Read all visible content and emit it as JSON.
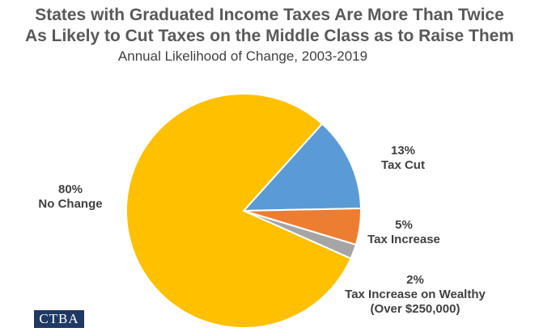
{
  "chart_data": {
    "type": "pie",
    "title": "States with Graduated Income Taxes Are More Than Twice As Likely to Cut Taxes on the Middle Class as to Raise Them",
    "title_lines": [
      "States with Graduated Income Taxes Are More Than Twice",
      "As Likely to Cut Taxes on the Middle Class as to Raise Them"
    ],
    "subtitle": "Annual Likelihood of Change, 2003-2019",
    "slices": [
      {
        "name": "Tax Cut",
        "value": 13,
        "label": "13%",
        "color": "#5b9bd5"
      },
      {
        "name": "Tax Increase",
        "value": 5,
        "label": "5%",
        "color": "#ed7d31"
      },
      {
        "name": "Tax Increase on Wealthy (Over $250,000)",
        "name_lines": [
          "Tax Increase on Wealthy",
          "(Over $250,000)"
        ],
        "value": 2,
        "label": "2%",
        "color": "#a5a5a5"
      },
      {
        "name": "No Change",
        "value": 80,
        "label": "80%",
        "color": "#ffc000"
      }
    ]
  },
  "logo": {
    "text": "CTBA",
    "color": "#1f3864"
  }
}
